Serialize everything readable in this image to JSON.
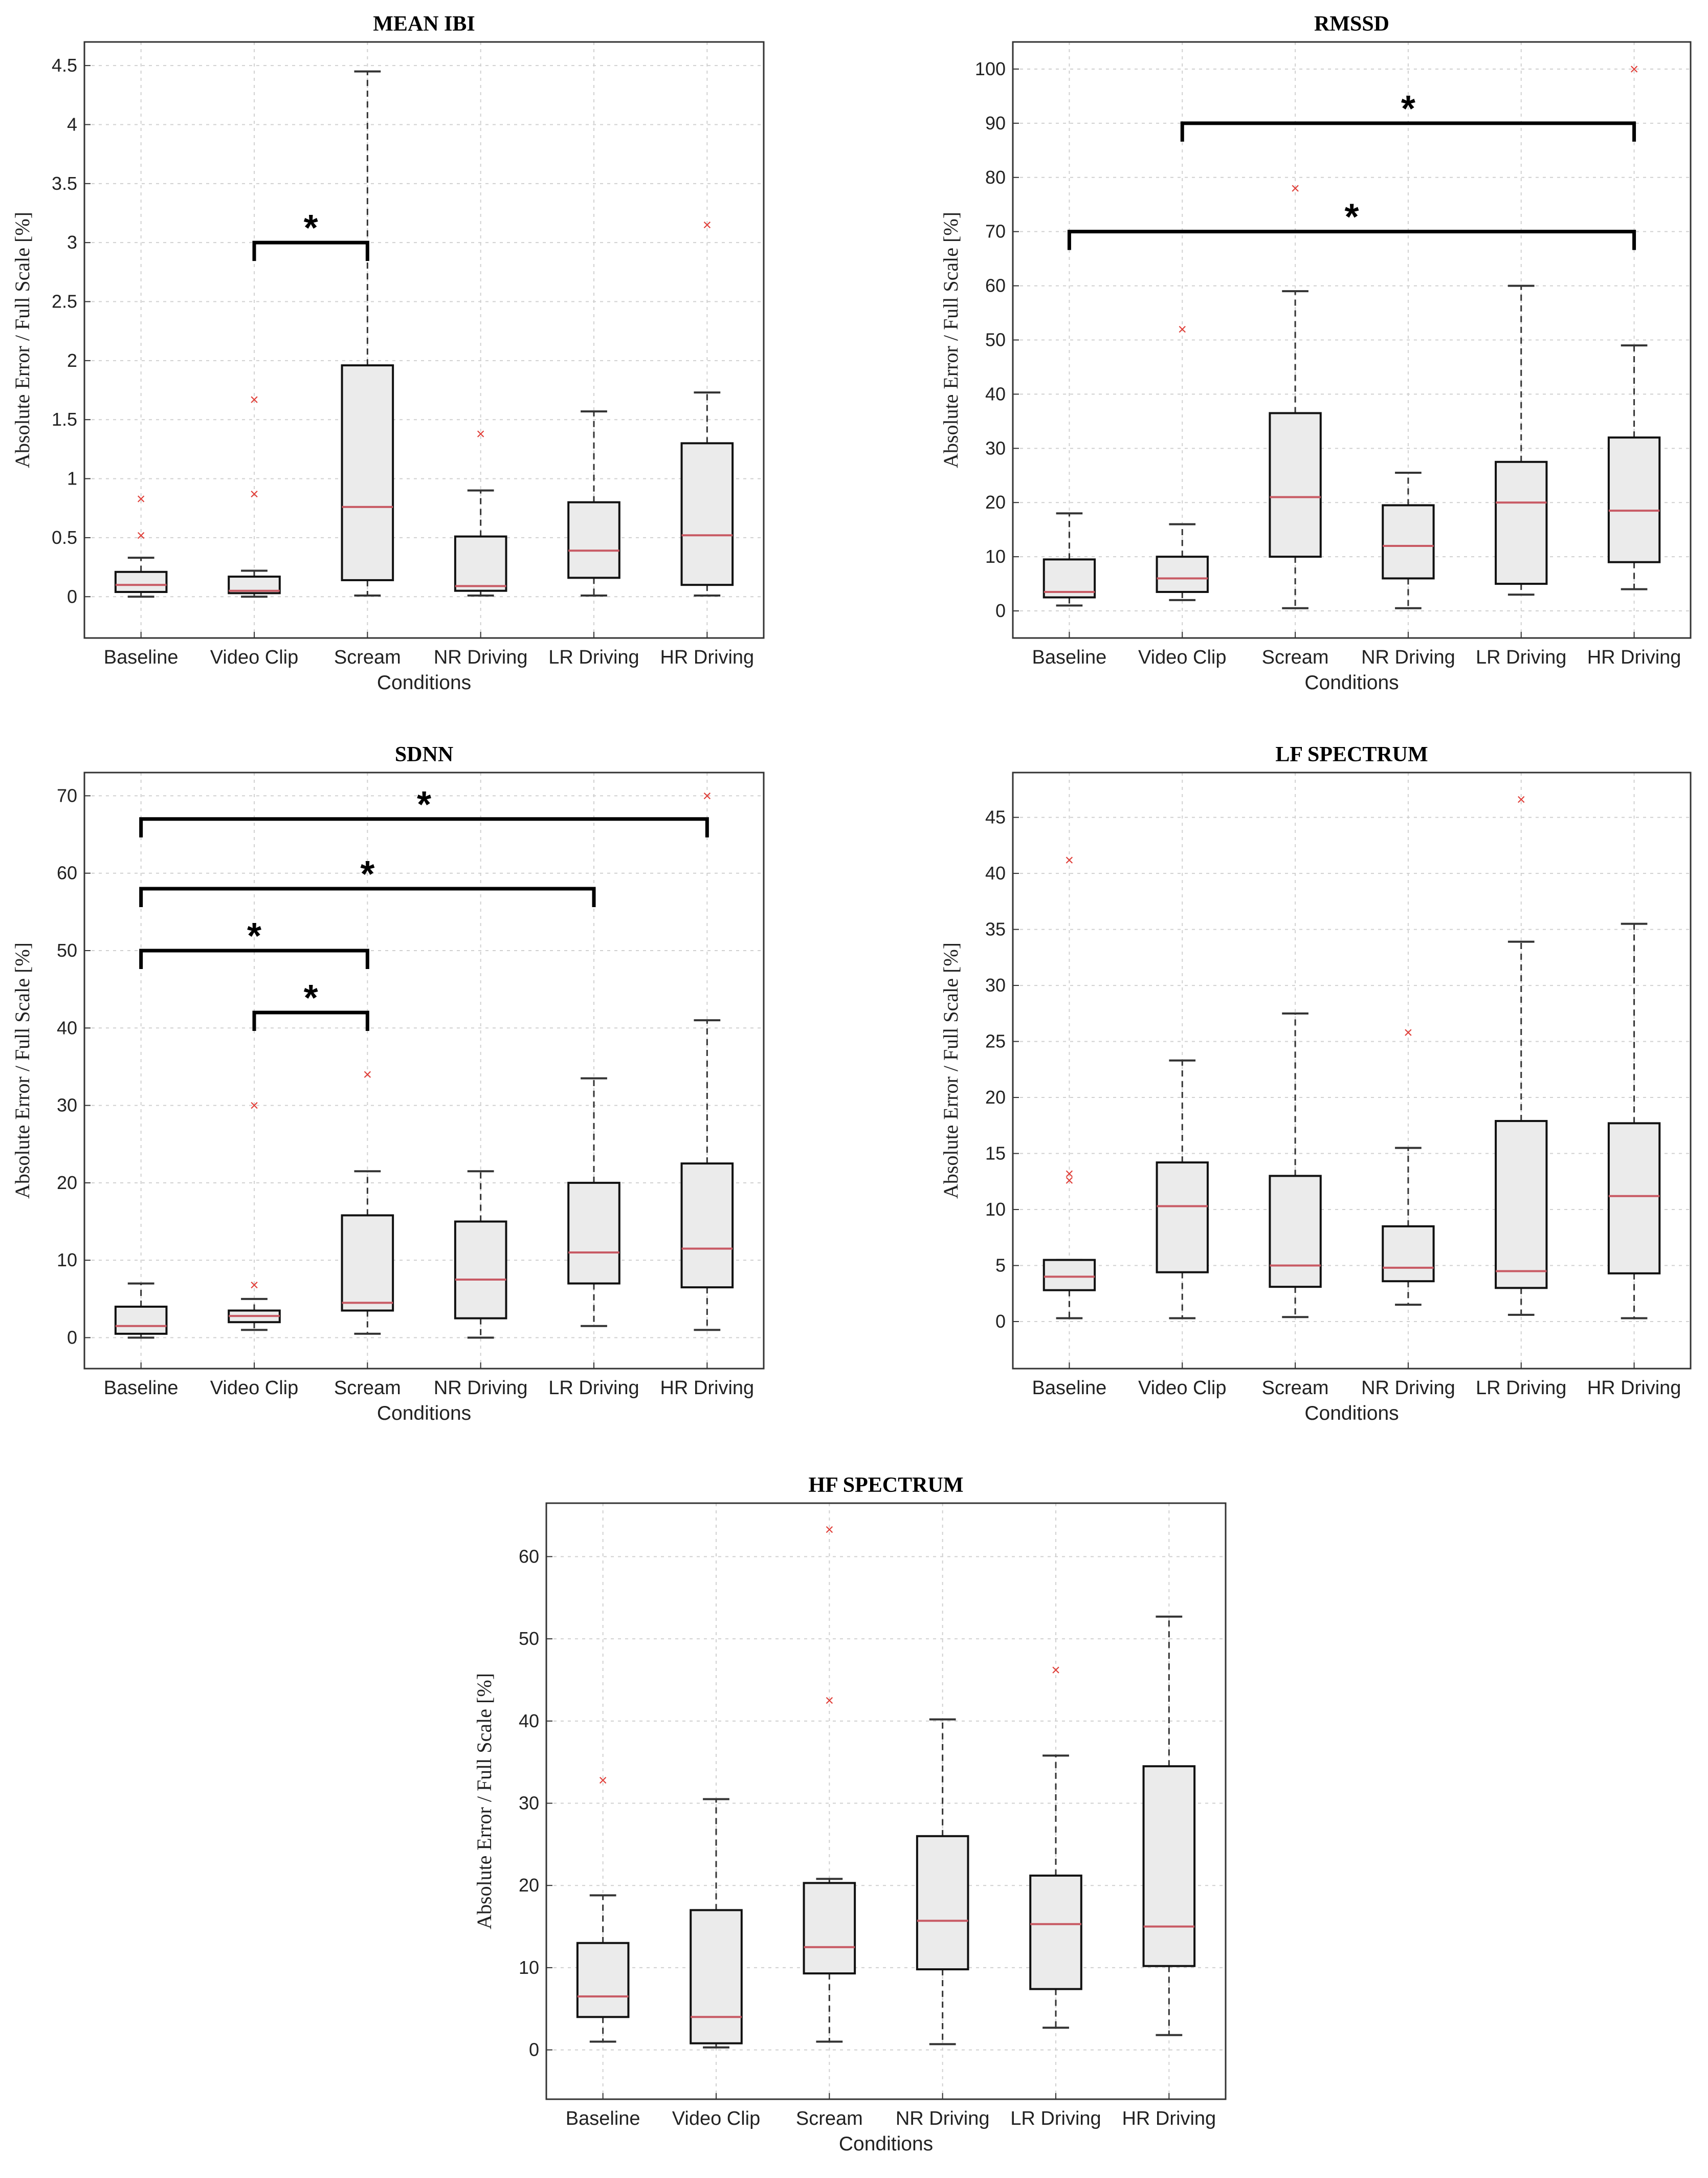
{
  "chart_data": [
    {
      "type": "box",
      "title": "MEAN IBI",
      "xlabel": "Conditions",
      "ylabel": "Absolute Error / Full Scale [%]",
      "ylim": [
        -0.35,
        4.7
      ],
      "yticks": [
        0,
        0.5,
        1,
        1.5,
        2,
        2.5,
        3,
        3.5,
        4,
        4.5
      ],
      "categories": [
        "Baseline",
        "Video Clip",
        "Scream",
        "NR Driving",
        "LR Driving",
        "HR Driving"
      ],
      "boxes": [
        {
          "whislo": 0.0,
          "q1": 0.04,
          "med": 0.1,
          "q3": 0.21,
          "whishi": 0.33,
          "fliers": [
            0.52,
            0.83
          ]
        },
        {
          "whislo": 0.0,
          "q1": 0.03,
          "med": 0.05,
          "q3": 0.17,
          "whishi": 0.22,
          "fliers": [
            0.87,
            1.67
          ]
        },
        {
          "whislo": 0.01,
          "q1": 0.14,
          "med": 0.76,
          "q3": 1.96,
          "whishi": 4.45,
          "fliers": []
        },
        {
          "whislo": 0.01,
          "q1": 0.05,
          "med": 0.09,
          "q3": 0.51,
          "whishi": 0.9,
          "fliers": [
            1.38
          ]
        },
        {
          "whislo": 0.01,
          "q1": 0.16,
          "med": 0.39,
          "q3": 0.8,
          "whishi": 1.57,
          "fliers": []
        },
        {
          "whislo": 0.01,
          "q1": 0.1,
          "med": 0.52,
          "q3": 1.3,
          "whishi": 1.73,
          "fliers": [
            3.15
          ]
        }
      ],
      "significance": [
        {
          "from": "Video Clip",
          "to": "Scream",
          "y": 3.0,
          "label": "*"
        }
      ]
    },
    {
      "type": "box",
      "title": "RMSSD",
      "xlabel": "Conditions",
      "ylabel": "Absolute Error / Full Scale [%]",
      "ylim": [
        -5,
        105
      ],
      "yticks": [
        0,
        10,
        20,
        30,
        40,
        50,
        60,
        70,
        80,
        90,
        100
      ],
      "categories": [
        "Baseline",
        "Video Clip",
        "Scream",
        "NR Driving",
        "LR Driving",
        "HR Driving"
      ],
      "boxes": [
        {
          "whislo": 1.0,
          "q1": 2.5,
          "med": 3.5,
          "q3": 9.5,
          "whishi": 18,
          "fliers": []
        },
        {
          "whislo": 2.0,
          "q1": 3.5,
          "med": 6.0,
          "q3": 10.0,
          "whishi": 16,
          "fliers": [
            52
          ]
        },
        {
          "whislo": 0.5,
          "q1": 10.0,
          "med": 21.0,
          "q3": 36.5,
          "whishi": 59,
          "fliers": [
            78
          ]
        },
        {
          "whislo": 0.5,
          "q1": 6.0,
          "med": 12.0,
          "q3": 19.5,
          "whishi": 25.5,
          "fliers": []
        },
        {
          "whislo": 3.0,
          "q1": 5.0,
          "med": 20.0,
          "q3": 27.5,
          "whishi": 60,
          "fliers": []
        },
        {
          "whislo": 4.0,
          "q1": 9.0,
          "med": 18.5,
          "q3": 32.0,
          "whishi": 49,
          "fliers": [
            100
          ]
        }
      ],
      "significance": [
        {
          "from": "Video Clip",
          "to": "HR Driving",
          "y": 90,
          "label": "*"
        },
        {
          "from": "Baseline",
          "to": "HR Driving",
          "y": 70,
          "label": "*"
        }
      ]
    },
    {
      "type": "box",
      "title": "SDNN",
      "xlabel": "Conditions",
      "ylabel": "Absolute Error / Full Scale [%]",
      "ylim": [
        -4,
        73
      ],
      "yticks": [
        0,
        10,
        20,
        30,
        40,
        50,
        60,
        70
      ],
      "categories": [
        "Baseline",
        "Video Clip",
        "Scream",
        "NR Driving",
        "LR Driving",
        "HR Driving"
      ],
      "boxes": [
        {
          "whislo": 0.0,
          "q1": 0.5,
          "med": 1.5,
          "q3": 4.0,
          "whishi": 7.0,
          "fliers": []
        },
        {
          "whislo": 1.0,
          "q1": 2.0,
          "med": 2.8,
          "q3": 3.5,
          "whishi": 5.0,
          "fliers": [
            6.8,
            30
          ]
        },
        {
          "whislo": 0.5,
          "q1": 3.5,
          "med": 4.5,
          "q3": 15.8,
          "whishi": 21.5,
          "fliers": [
            34
          ]
        },
        {
          "whislo": 0.0,
          "q1": 2.5,
          "med": 7.5,
          "q3": 15.0,
          "whishi": 21.5,
          "fliers": []
        },
        {
          "whislo": 1.5,
          "q1": 7.0,
          "med": 11.0,
          "q3": 20.0,
          "whishi": 33.5,
          "fliers": []
        },
        {
          "whislo": 1.0,
          "q1": 6.5,
          "med": 11.5,
          "q3": 22.5,
          "whishi": 41,
          "fliers": [
            70
          ]
        }
      ],
      "significance": [
        {
          "from": "Baseline",
          "to": "HR Driving",
          "y": 67,
          "label": "*"
        },
        {
          "from": "Baseline",
          "to": "LR Driving",
          "y": 58,
          "label": "*"
        },
        {
          "from": "Baseline",
          "to": "Scream",
          "y": 50,
          "label": "*"
        },
        {
          "from": "Video Clip",
          "to": "Scream",
          "y": 42,
          "label": "*"
        }
      ]
    },
    {
      "type": "box",
      "title": "LF SPECTRUM",
      "xlabel": "Conditions",
      "ylabel": "Absolute Error / Full Scale [%]",
      "ylim": [
        -4.2,
        49
      ],
      "yticks": [
        0,
        5,
        10,
        15,
        20,
        25,
        30,
        35,
        40,
        45
      ],
      "categories": [
        "Baseline",
        "Video Clip",
        "Scream",
        "NR Driving",
        "LR Driving",
        "HR Driving"
      ],
      "boxes": [
        {
          "whislo": 0.3,
          "q1": 2.8,
          "med": 4.0,
          "q3": 5.5,
          "whishi": 5.5,
          "fliers": [
            12.6,
            13.2,
            41.2
          ]
        },
        {
          "whislo": 0.3,
          "q1": 4.4,
          "med": 10.3,
          "q3": 14.2,
          "whishi": 23.3,
          "fliers": []
        },
        {
          "whislo": 0.4,
          "q1": 3.1,
          "med": 5.0,
          "q3": 13.0,
          "whishi": 27.5,
          "fliers": []
        },
        {
          "whislo": 1.5,
          "q1": 3.6,
          "med": 4.8,
          "q3": 8.5,
          "whishi": 15.5,
          "fliers": [
            25.8
          ]
        },
        {
          "whislo": 0.6,
          "q1": 3.0,
          "med": 4.5,
          "q3": 17.9,
          "whishi": 33.9,
          "fliers": [
            46.6
          ]
        },
        {
          "whislo": 0.3,
          "q1": 4.3,
          "med": 11.2,
          "q3": 17.7,
          "whishi": 35.5,
          "fliers": []
        }
      ],
      "significance": []
    },
    {
      "type": "box",
      "title": "HF SPECTRUM",
      "xlabel": "Conditions",
      "ylabel": "Absolute Error / Full Scale [%]",
      "ylim": [
        -6,
        66.5
      ],
      "yticks": [
        0,
        10,
        20,
        30,
        40,
        50,
        60
      ],
      "categories": [
        "Baseline",
        "Video Clip",
        "Scream",
        "NR Driving",
        "LR Driving",
        "HR Driving"
      ],
      "boxes": [
        {
          "whislo": 1.0,
          "q1": 4.0,
          "med": 6.5,
          "q3": 13.0,
          "whishi": 18.8,
          "fliers": [
            32.8
          ]
        },
        {
          "whislo": 0.3,
          "q1": 0.8,
          "med": 4.0,
          "q3": 17.0,
          "whishi": 30.5,
          "fliers": []
        },
        {
          "whislo": 1.0,
          "q1": 9.3,
          "med": 12.5,
          "q3": 20.3,
          "whishi": 20.8,
          "fliers": [
            42.5,
            63.3
          ]
        },
        {
          "whislo": 0.7,
          "q1": 9.8,
          "med": 15.7,
          "q3": 26.0,
          "whishi": 40.2,
          "fliers": []
        },
        {
          "whislo": 2.7,
          "q1": 7.4,
          "med": 15.3,
          "q3": 21.2,
          "whishi": 35.8,
          "fliers": [
            46.2
          ]
        },
        {
          "whislo": 1.8,
          "q1": 10.2,
          "med": 15.0,
          "q3": 34.5,
          "whishi": 52.7,
          "fliers": []
        }
      ],
      "significance": []
    }
  ]
}
